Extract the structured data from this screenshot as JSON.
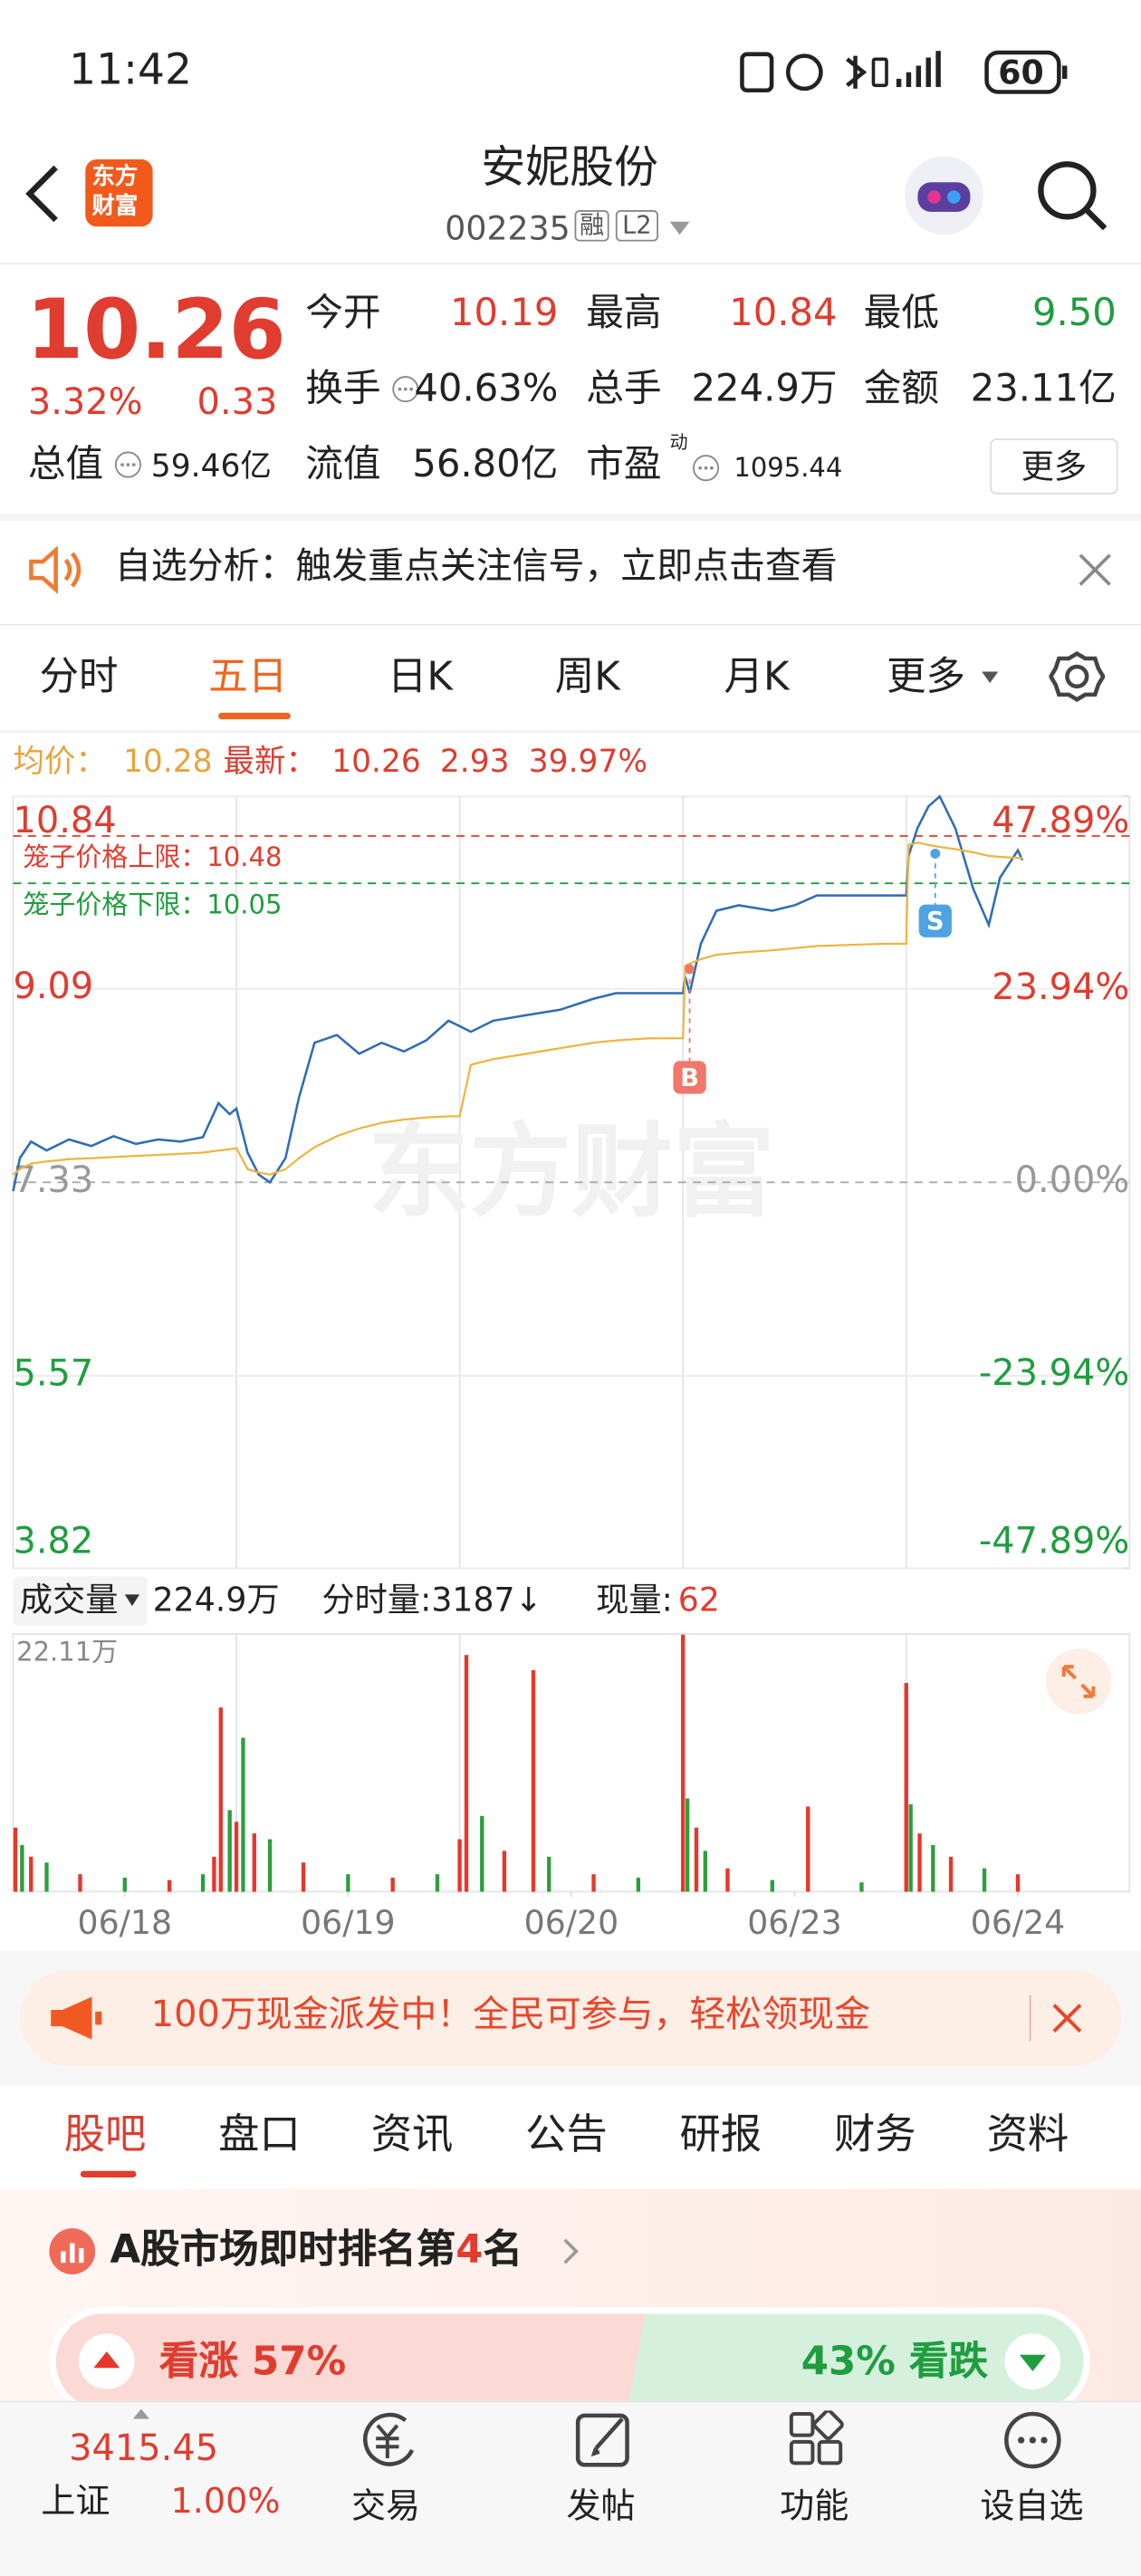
{
  "status_bar": {
    "time": "11:42",
    "battery": "60"
  },
  "header": {
    "logo": [
      "东方",
      "财富"
    ],
    "title": "安妮股份",
    "code": "002235",
    "tags": [
      "融",
      "L2"
    ]
  },
  "quote": {
    "price": "10.26",
    "change_pct": "3.32%",
    "change": "0.33",
    "fields": [
      {
        "label": "今开",
        "value": "10.19"
      },
      {
        "label": "最高",
        "value": "10.84"
      },
      {
        "label": "最低",
        "value": "9.50"
      },
      {
        "label": "换手",
        "value": "40.63%"
      },
      {
        "label": "总手",
        "value": "224.9万"
      },
      {
        "label": "金额",
        "value": "23.11亿"
      },
      {
        "label": "总值",
        "value": "59.46亿"
      },
      {
        "label": "流值",
        "value": "56.80亿"
      },
      {
        "label": "市盈",
        "sup": "动",
        "value": "1095.44"
      }
    ],
    "more": "更多"
  },
  "notice": "自选分析：触发重点关注信号，立即点击查看",
  "chart_tabs": [
    "分时",
    "五日",
    "日K",
    "周K",
    "月K",
    "更多"
  ],
  "chart_info": {
    "avg": "10.28",
    "latest": "10.26",
    "change": "2.93",
    "pct": "39.97%"
  },
  "chart_data": [
    {
      "type": "line",
      "watermark": "东方财富",
      "x": [
        0,
        0.03,
        0.08,
        0.15,
        0.25,
        0.35,
        0.45,
        0.55,
        0.65,
        0.75,
        0.85,
        0.92,
        0.97,
        1.0,
        1.05,
        1.1,
        1.15,
        1.22,
        1.28,
        1.35,
        1.45,
        1.55,
        1.65,
        1.75,
        1.85,
        1.95,
        2.0,
        2.05,
        2.15,
        2.3,
        2.45,
        2.6,
        2.7,
        2.85,
        3.0,
        3.01,
        3.03,
        3.08,
        3.15,
        3.25,
        3.4,
        3.5,
        3.6,
        3.75,
        3.9,
        4.0,
        4.01,
        4.05,
        4.1,
        4.15,
        4.22,
        4.3,
        4.37,
        4.42,
        4.5,
        4.52
      ],
      "xlim": [
        0,
        5
      ],
      "ylim": [
        3.82,
        10.84
      ],
      "yticks": [
        10.84,
        9.09,
        7.33,
        5.57,
        3.82
      ],
      "y2lim": [
        -47.89,
        47.89
      ],
      "y2ticks": [
        {
          "value": 47.89,
          "label": "47.89%"
        },
        {
          "value": 23.94,
          "label": "23.94%"
        },
        {
          "value": 0,
          "label": "0.00%"
        },
        {
          "value": -23.94,
          "label": "-23.94%"
        },
        {
          "value": -47.89,
          "label": "-47.89%"
        }
      ],
      "series": [
        {
          "name": "最新：",
          "color": "#2f6db3",
          "values": [
            7.25,
            7.55,
            7.7,
            7.62,
            7.72,
            7.66,
            7.75,
            7.68,
            7.72,
            7.7,
            7.74,
            8.05,
            7.95,
            8.0,
            7.6,
            7.4,
            7.33,
            7.55,
            8.1,
            8.6,
            8.67,
            8.5,
            8.6,
            8.52,
            8.62,
            8.8,
            8.75,
            8.7,
            8.8,
            8.85,
            8.9,
            9.0,
            9.05,
            9.05,
            9.05,
            9.2,
            9.05,
            9.5,
            9.8,
            9.85,
            9.8,
            9.85,
            9.94,
            9.94,
            9.94,
            9.94,
            10.3,
            10.55,
            10.75,
            10.84,
            10.55,
            10.0,
            9.67,
            10.1,
            10.35,
            10.26
          ]
        },
        {
          "name": "均价：",
          "color": "#eeb33c",
          "values": [
            7.4,
            7.45,
            7.5,
            7.52,
            7.54,
            7.55,
            7.56,
            7.57,
            7.58,
            7.59,
            7.6,
            7.62,
            7.63,
            7.64,
            7.45,
            7.42,
            7.4,
            7.45,
            7.55,
            7.65,
            7.75,
            7.82,
            7.87,
            7.9,
            7.92,
            7.93,
            7.93,
            8.4,
            8.45,
            8.5,
            8.55,
            8.6,
            8.62,
            8.64,
            8.64,
            9.3,
            9.32,
            9.36,
            9.4,
            9.42,
            9.44,
            9.46,
            9.48,
            9.49,
            9.5,
            9.5,
            10.4,
            10.42,
            10.4,
            10.38,
            10.36,
            10.33,
            10.3,
            10.29,
            10.28,
            10.28
          ]
        }
      ],
      "annotations": [
        {
          "text": "笼子价格上限：",
          "value": 10.48,
          "color": "#e03c2f"
        },
        {
          "text": "笼子价格下限：",
          "value": 10.05,
          "color": "#1f9d3f"
        }
      ],
      "markers": [
        {
          "text": "B",
          "x": 3.03,
          "y": 9.27,
          "color": "#f0776a"
        },
        {
          "text": "S",
          "x": 4.13,
          "y": 10.32,
          "color": "#4fa3e3"
        }
      ]
    },
    {
      "type": "bar",
      "title": "成交量",
      "total": "224.9万",
      "tick_volume": "分时量:3187↓",
      "current_label": "现量:",
      "current": "62",
      "x": [
        0.01,
        0.04,
        0.08,
        0.15,
        0.3,
        0.5,
        0.7,
        0.85,
        0.9,
        0.93,
        0.97,
        1.0,
        1.03,
        1.08,
        1.15,
        1.3,
        1.5,
        1.7,
        1.9,
        2.0,
        2.03,
        2.1,
        2.2,
        2.33,
        2.4,
        2.6,
        2.8,
        3.0,
        3.02,
        3.06,
        3.1,
        3.2,
        3.4,
        3.56,
        3.8,
        4.0,
        4.02,
        4.06,
        4.12,
        4.2,
        4.35,
        4.5
      ],
      "values": [
        5.5,
        4.0,
        3.0,
        2.5,
        1.5,
        1.2,
        1.0,
        1.5,
        3.0,
        15.8,
        7.0,
        6.0,
        13.2,
        5.0,
        4.5,
        2.5,
        1.5,
        1.2,
        1.5,
        4.5,
        20.3,
        6.5,
        3.5,
        19.0,
        3.0,
        1.5,
        1.2,
        22.11,
        8.0,
        5.5,
        3.5,
        2.0,
        1.0,
        7.3,
        0.8,
        17.9,
        7.5,
        5.0,
        4.0,
        3.0,
        2.0,
        1.5
      ],
      "colors": [
        "#e8362a",
        "#2e9e3e",
        "#e8362a",
        "#2e9e3e",
        "#e8362a",
        "#2e9e3e",
        "#e8362a",
        "#2e9e3e",
        "#e8362a",
        "#e8362a",
        "#2e9e3e",
        "#e8362a",
        "#2e9e3e",
        "#e8362a",
        "#2e9e3e",
        "#e8362a",
        "#2e9e3e",
        "#e8362a",
        "#2e9e3e",
        "#e8362a",
        "#e8362a",
        "#2e9e3e",
        "#e8362a",
        "#e8362a",
        "#2e9e3e",
        "#e8362a",
        "#2e9e3e",
        "#e8362a",
        "#2e9e3e",
        "#e8362a",
        "#2e9e3e",
        "#e8362a",
        "#2e9e3e",
        "#e8362a",
        "#2e9e3e",
        "#e8362a",
        "#2e9e3e",
        "#e8362a",
        "#2e9e3e",
        "#e8362a",
        "#2e9e3e",
        "#e8362a"
      ],
      "xlim": [
        0,
        5
      ],
      "ylim": [
        0,
        22.11
      ],
      "yticks": [
        {
          "value": 22.11,
          "label": "22.11万"
        }
      ],
      "xticks": [
        {
          "value": 0.5,
          "label": "06/18"
        },
        {
          "value": 1.5,
          "label": "06/19"
        },
        {
          "value": 2.5,
          "label": "06/20"
        },
        {
          "value": 3.5,
          "label": "06/23"
        },
        {
          "value": 4.5,
          "label": "06/24"
        }
      ]
    }
  ],
  "promo": "100万现金派发中！全民可参与，轻松领现金",
  "section_tabs": [
    "股吧",
    "盘口",
    "资讯",
    "公告",
    "研报",
    "财务",
    "资料"
  ],
  "ranking": {
    "prefix": "A股市场即时排名第",
    "rank": "4",
    "suffix": "名"
  },
  "sentiment": {
    "up": "看涨 57%",
    "down": "43% 看跌"
  },
  "bottom_nav": {
    "index_value": "3415.45",
    "index_name": "上证",
    "index_change": "1.00%",
    "items": [
      "交易",
      "发帖",
      "功能",
      "设自选"
    ]
  }
}
